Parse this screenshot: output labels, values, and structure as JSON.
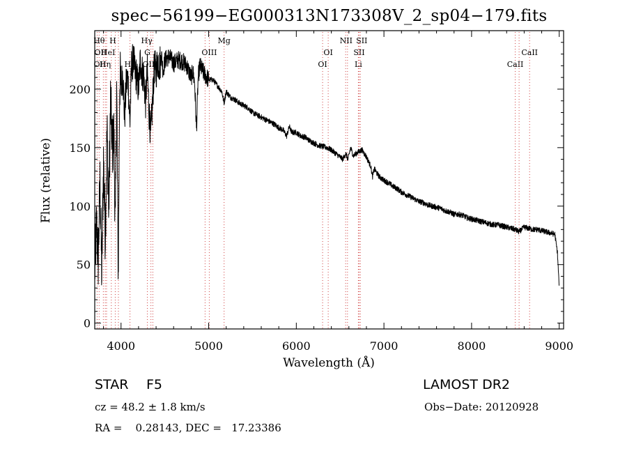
{
  "chart_data": {
    "type": "line",
    "title": "spec−56199−EG000313N173308V_2_sp04−179.fits",
    "xlabel": "Wavelength (Å)",
    "ylabel": "Flux (relative)",
    "xlim": [
      3700,
      9050
    ],
    "ylim": [
      -5,
      250
    ],
    "xticks": [
      4000,
      5000,
      6000,
      7000,
      8000,
      9000
    ],
    "yticks": [
      0,
      50,
      100,
      150,
      200
    ],
    "grid": false,
    "series": [
      {
        "name": "flux",
        "x": [
          3700,
          3720,
          3740,
          3760,
          3780,
          3800,
          3820,
          3840,
          3860,
          3880,
          3900,
          3920,
          3935,
          3950,
          3968,
          3985,
          4000,
          4020,
          4040,
          4060,
          4080,
          4101,
          4120,
          4140,
          4160,
          4180,
          4200,
          4220,
          4240,
          4260,
          4280,
          4300,
          4320,
          4340,
          4360,
          4380,
          4400,
          4420,
          4440,
          4460,
          4480,
          4500,
          4550,
          4600,
          4650,
          4700,
          4750,
          4800,
          4820,
          4840,
          4861,
          4880,
          4900,
          4950,
          5000,
          5050,
          5100,
          5150,
          5175,
          5200,
          5250,
          5300,
          5350,
          5400,
          5450,
          5500,
          5550,
          5600,
          5650,
          5700,
          5750,
          5800,
          5850,
          5890,
          5920,
          5950,
          6000,
          6050,
          6100,
          6150,
          6200,
          6250,
          6300,
          6350,
          6400,
          6450,
          6500,
          6530,
          6563,
          6590,
          6620,
          6650,
          6700,
          6750,
          6800,
          6850,
          6869,
          6890,
          6920,
          6950,
          7000,
          7050,
          7100,
          7150,
          7200,
          7250,
          7300,
          7350,
          7400,
          7450,
          7500,
          7550,
          7600,
          7650,
          7700,
          7750,
          7800,
          7850,
          7900,
          7950,
          8000,
          8050,
          8100,
          8150,
          8200,
          8250,
          8300,
          8350,
          8400,
          8450,
          8500,
          8542,
          8600,
          8650,
          8700,
          8750,
          8800,
          8850,
          8900,
          8950,
          8980,
          9000
        ],
        "values": [
          45,
          85,
          55,
          120,
          40,
          140,
          75,
          165,
          95,
          190,
          150,
          160,
          75,
          205,
          40,
          210,
          200,
          215,
          175,
          205,
          210,
          170,
          220,
          225,
          215,
          210,
          200,
          225,
          215,
          210,
          190,
          215,
          180,
          160,
          190,
          220,
          215,
          225,
          220,
          230,
          215,
          225,
          228,
          222,
          225,
          224,
          220,
          210,
          215,
          205,
          165,
          210,
          220,
          213,
          208,
          208,
          203,
          198,
          188,
          198,
          193,
          191,
          188,
          186,
          184,
          180,
          178,
          176,
          174,
          172,
          170,
          167,
          165,
          160,
          168,
          163,
          163,
          160,
          159,
          156,
          154,
          152,
          151,
          150,
          148,
          145,
          142,
          140,
          145,
          140,
          150,
          143,
          146,
          148,
          142,
          134,
          125,
          132,
          128,
          125,
          122,
          120,
          117,
          115,
          112,
          110,
          108,
          106,
          104,
          103,
          101,
          100,
          99,
          98,
          96,
          95,
          93,
          93,
          92,
          90,
          89,
          88,
          87,
          86,
          85,
          84,
          84,
          83,
          82,
          81,
          80,
          78,
          82,
          81,
          80,
          80,
          79,
          78,
          77,
          76,
          60,
          30
        ]
      }
    ],
    "lines": [
      {
        "wavelength": 3727,
        "label": "OII",
        "row": 3,
        "dx": 4
      },
      {
        "wavelength": 3750,
        "label": "OII",
        "row": 2,
        "dx": 2
      },
      {
        "wavelength": 3798,
        "label": "Hθ",
        "row": 1,
        "dx": -6
      },
      {
        "wavelength": 3820,
        "label": "HeI",
        "row": 2,
        "dx": 4
      },
      {
        "wavelength": 3835,
        "label": "Hη",
        "row": 3,
        "dx": -2
      },
      {
        "wavelength": 3889,
        "label": "",
        "row": 0,
        "dx": 0
      },
      {
        "wavelength": 3934,
        "label": "",
        "row": 0,
        "dx": 0
      },
      {
        "wavelength": 3970,
        "label": "H",
        "row": 1,
        "dx": -8
      },
      {
        "wavelength": 4102,
        "label": "Hδ",
        "row": 3,
        "dx": 0
      },
      {
        "wavelength": 4300,
        "label": "G",
        "row": 2,
        "dx": 0
      },
      {
        "wavelength": 4341,
        "label": "Hγ",
        "row": 1,
        "dx": -6
      },
      {
        "wavelength": 4363,
        "label": "OIII",
        "row": 3,
        "dx": -4
      },
      {
        "wavelength": 4959,
        "label": "",
        "row": 0,
        "dx": 0
      },
      {
        "wavelength": 5007,
        "label": "OIII",
        "row": 2,
        "dx": 0
      },
      {
        "wavelength": 5176,
        "label": "Mg",
        "row": 1,
        "dx": 0
      },
      {
        "wavelength": 6300,
        "label": "OI",
        "row": 3,
        "dx": 0
      },
      {
        "wavelength": 6364,
        "label": "OI",
        "row": 2,
        "dx": 0
      },
      {
        "wavelength": 6563,
        "label": "",
        "row": 0,
        "dx": 0
      },
      {
        "wavelength": 6584,
        "label": "NII",
        "row": 1,
        "dx": -2
      },
      {
        "wavelength": 6708,
        "label": "Li",
        "row": 3,
        "dx": 0
      },
      {
        "wavelength": 6717,
        "label": "SII",
        "row": 2,
        "dx": 0
      },
      {
        "wavelength": 6731,
        "label": "SII",
        "row": 1,
        "dx": 2
      },
      {
        "wavelength": 8498,
        "label": "CaII",
        "row": 3,
        "dx": 0
      },
      {
        "wavelength": 8542,
        "label": "",
        "row": 0,
        "dx": 0
      },
      {
        "wavelength": 8662,
        "label": "CaII",
        "row": 2,
        "dx": 0
      }
    ]
  },
  "info": {
    "object_type": "STAR",
    "subclass": "F5",
    "survey": "LAMOST DR2",
    "cz": "cz = 48.2 ± 1.8 km/s",
    "obs_date": "Obs−Date: 20120928",
    "radec": "RA =    0.28143, DEC =   17.23386"
  }
}
